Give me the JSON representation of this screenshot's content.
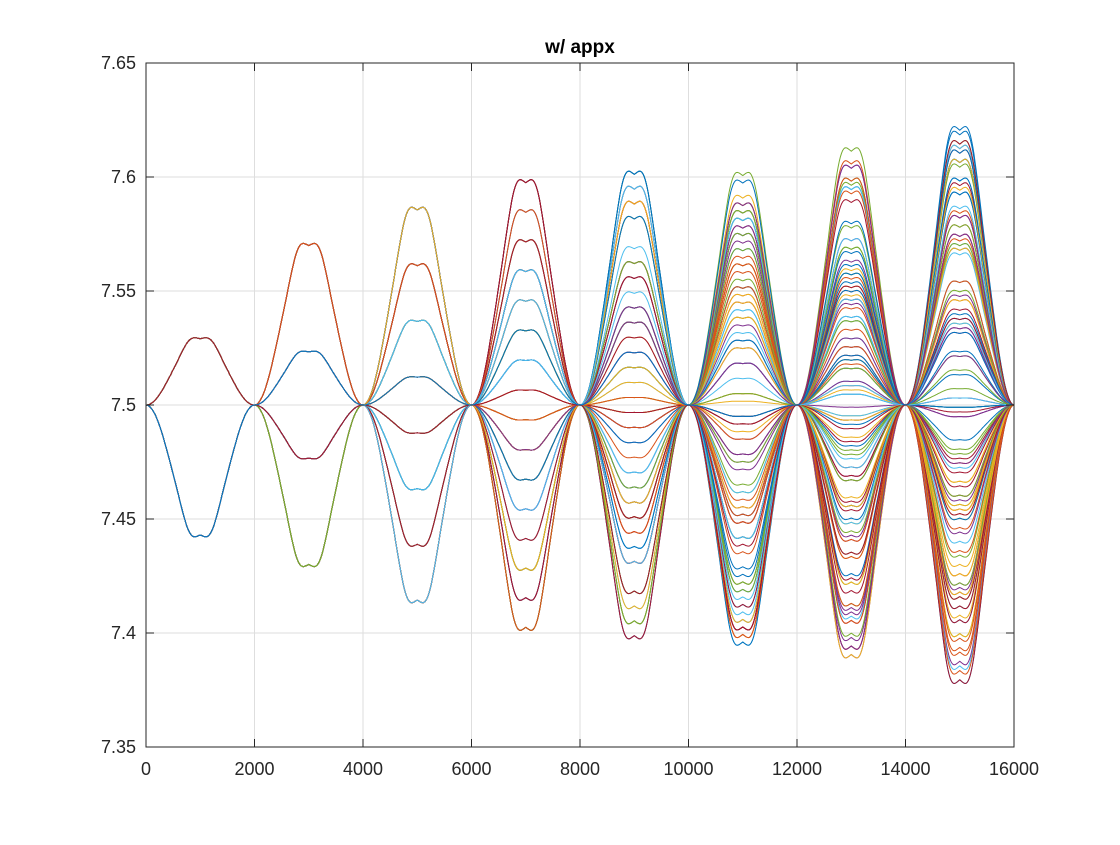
{
  "chart_data": {
    "type": "line",
    "title": "w/ appx",
    "xlabel": "",
    "ylabel": "",
    "xlim": [
      0,
      16000
    ],
    "ylim": [
      7.35,
      7.65
    ],
    "xticks": [
      0,
      2000,
      4000,
      6000,
      8000,
      10000,
      12000,
      14000,
      16000
    ],
    "yticks": [
      7.35,
      7.4,
      7.45,
      7.5,
      7.55,
      7.6,
      7.65
    ],
    "xtick_labels": [
      "0",
      "2000",
      "4000",
      "6000",
      "8000",
      "10000",
      "12000",
      "14000",
      "16000"
    ],
    "ytick_labels": [
      "7.35",
      "7.4",
      "7.45",
      "7.5",
      "7.55",
      "7.6",
      "7.65"
    ],
    "grid": true,
    "legend": "none",
    "baseline": 7.5,
    "pulse_period": 2000,
    "pulse_centers": [
      1000,
      3000,
      5000,
      7000,
      9000,
      11000,
      13000,
      15000
    ],
    "envelope_peaks": [
      {
        "x": 1000,
        "max": 7.562,
        "min": 7.44
      },
      {
        "x": 3000,
        "max": 7.575,
        "min": 7.424
      },
      {
        "x": 5000,
        "max": 7.59,
        "min": 7.407
      },
      {
        "x": 7000,
        "max": 7.603,
        "min": 7.394
      },
      {
        "x": 9000,
        "max": 7.607,
        "min": 7.39
      },
      {
        "x": 11000,
        "max": 7.611,
        "min": 7.387
      },
      {
        "x": 13000,
        "max": 7.62,
        "min": 7.379
      },
      {
        "x": 15000,
        "max": 7.631,
        "min": 7.37
      }
    ],
    "series_count": 120,
    "series_colors": [
      "#0072BD",
      "#D95319",
      "#EDB120",
      "#7E2F8E",
      "#77AC30",
      "#4DBEEE",
      "#A2142F"
    ]
  }
}
